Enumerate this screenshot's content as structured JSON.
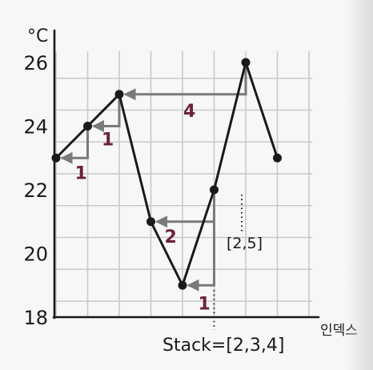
{
  "chart_data": {
    "type": "line",
    "y_unit": "°C",
    "x_axis_label": "인덱스",
    "y_ticks": [
      18,
      20,
      22,
      24,
      26
    ],
    "ylim": [
      18,
      26
    ],
    "x": [
      0,
      1,
      2,
      3,
      4,
      5,
      6,
      7
    ],
    "values": [
      23,
      24,
      25,
      21,
      19,
      22,
      26,
      23
    ],
    "grid": true,
    "colors": {
      "line": "#1a1a1a",
      "arrow": "#7a7a7a",
      "answer": "#6b2336",
      "text": "#1a1a1a",
      "grid": "#c9c9c9"
    },
    "answer_arrows": [
      {
        "from_index": 1,
        "to_index": 0,
        "label": "1"
      },
      {
        "from_index": 2,
        "to_index": 1,
        "label": "1"
      },
      {
        "from_index": 6,
        "to_index": 2,
        "label": "4"
      },
      {
        "from_index": 5,
        "to_index": 4,
        "label": "1"
      },
      {
        "from_index": 5,
        "to_index": 3,
        "label": "2"
      }
    ],
    "stack_annotations": [
      {
        "text": "[2,5]",
        "at_index": 5
      },
      {
        "text": "Stack=[2,3,4]",
        "at_index": 5
      }
    ]
  }
}
